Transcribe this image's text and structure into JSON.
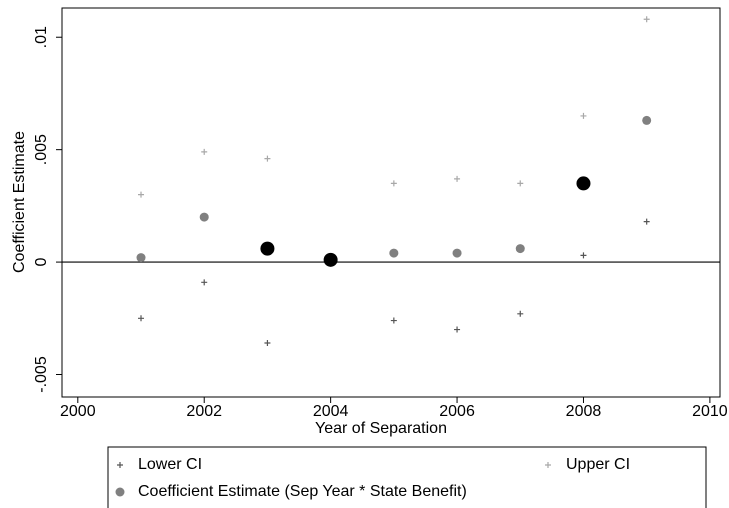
{
  "chart_data": {
    "type": "scatter",
    "x_label": "Year of Separation",
    "y_label": "Coefficient Estimate",
    "x": [
      2001,
      2002,
      2003,
      2004,
      2005,
      2006,
      2007,
      2008,
      2009
    ],
    "series": [
      {
        "name": "Lower CI",
        "color": "#555555",
        "marker": "plus",
        "values": [
          -0.0025,
          -0.0009,
          -0.0036,
          null,
          -0.0026,
          -0.003,
          -0.0023,
          0.0003,
          0.0018
        ]
      },
      {
        "name": "Upper CI",
        "color": "#a8a8a8",
        "marker": "plus",
        "values": [
          0.003,
          0.0049,
          0.0046,
          null,
          0.0035,
          0.0037,
          0.0035,
          0.0065,
          0.0108
        ]
      },
      {
        "name": "Coefficient Estimate (Sep Year * State Benefit)",
        "color": "#808080",
        "marker": "circle",
        "highlight_color": "#000000",
        "highlighted": [
          false,
          false,
          true,
          true,
          false,
          false,
          false,
          true,
          false
        ],
        "values": [
          0.0002,
          0.002,
          0.0006,
          0.0001,
          0.0004,
          0.0004,
          0.0006,
          0.0035,
          0.0063
        ]
      }
    ],
    "xlim": [
      1999.75,
      2010.16
    ],
    "xticks": [
      2000,
      2002,
      2004,
      2006,
      2008,
      2010
    ],
    "ylim": [
      -0.006,
      0.0113
    ],
    "yticks": [
      {
        "value": -0.005,
        "label": "-.005"
      },
      0,
      {
        "value": 0.005,
        "label": ".005"
      },
      {
        "value": 0.01,
        "label": ".01"
      }
    ],
    "yline": 0,
    "grid": false,
    "legend_position": "bottom"
  }
}
